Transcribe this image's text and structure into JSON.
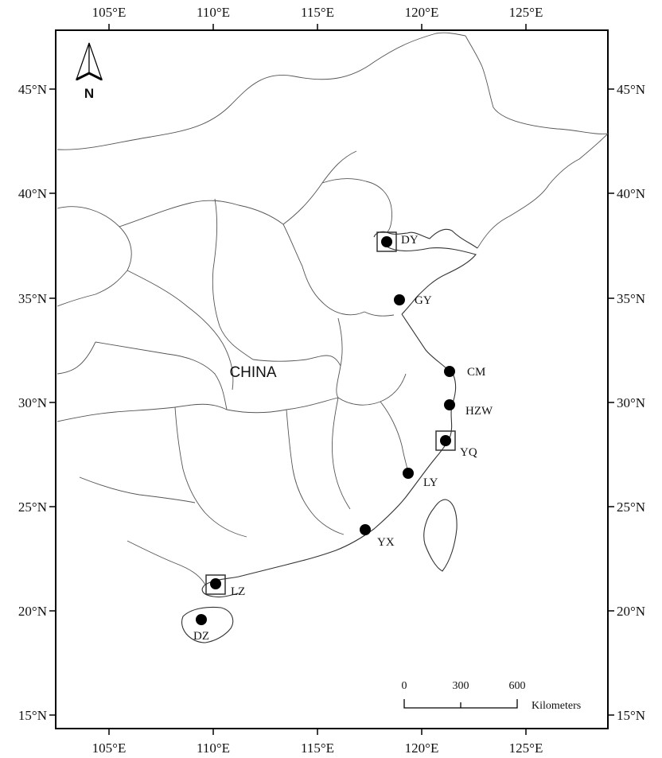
{
  "map": {
    "country_label": "CHINA",
    "north_arrow_label": "N",
    "lon_ticks": [
      "105°E",
      "110°E",
      "115°E",
      "120°E",
      "125°E"
    ],
    "lat_ticks": [
      "45°N",
      "40°N",
      "35°N",
      "30°N",
      "25°N",
      "20°N",
      "15°N"
    ],
    "scale_bar": {
      "values": [
        "0",
        "300",
        "600"
      ],
      "unit": "Kilometers"
    },
    "sites": [
      {
        "code": "DY",
        "boxed": true
      },
      {
        "code": "GY",
        "boxed": false
      },
      {
        "code": "CM",
        "boxed": false
      },
      {
        "code": "HZW",
        "boxed": false
      },
      {
        "code": "YQ",
        "boxed": true
      },
      {
        "code": "LY",
        "boxed": false
      },
      {
        "code": "YX",
        "boxed": false
      },
      {
        "code": "LZ",
        "boxed": true
      },
      {
        "code": "DZ",
        "boxed": false
      }
    ]
  }
}
